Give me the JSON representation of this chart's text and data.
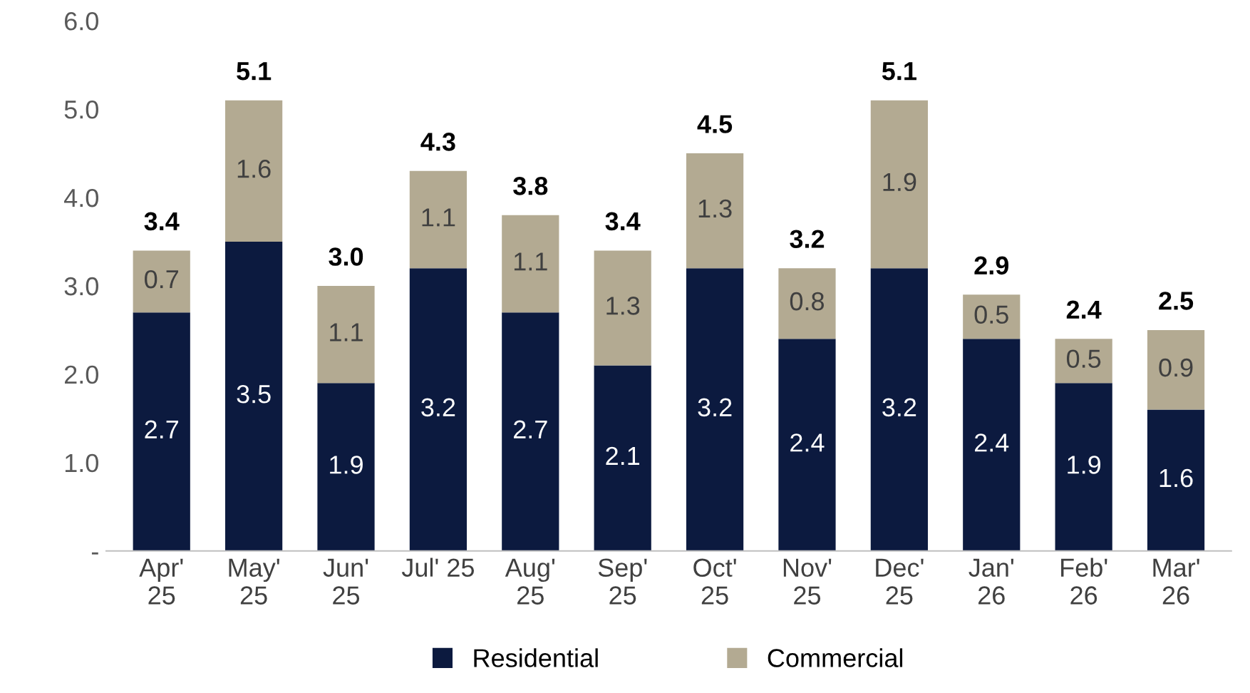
{
  "chart_data": {
    "type": "bar",
    "stacked": true,
    "categories": [
      "Apr'\n25",
      "May'\n25",
      "Jun'\n25",
      "Jul' 25",
      "Aug'\n25",
      "Sep'\n25",
      "Oct'\n25",
      "Nov'\n25",
      "Dec'\n25",
      "Jan'\n26",
      "Feb'\n26",
      "Mar'\n26"
    ],
    "series": [
      {
        "name": "Residential",
        "color": "#0c1a3f",
        "values": [
          2.7,
          3.5,
          1.9,
          3.2,
          2.7,
          2.1,
          3.2,
          2.4,
          3.2,
          2.4,
          1.9,
          1.6
        ]
      },
      {
        "name": "Commercial",
        "color": "#b3aa92",
        "values": [
          0.7,
          1.6,
          1.1,
          1.1,
          1.1,
          1.3,
          1.3,
          0.8,
          1.9,
          0.5,
          0.5,
          0.9
        ]
      }
    ],
    "totals": [
      "3.4",
      "5.1",
      "3.0",
      "4.3",
      "3.8",
      "3.4",
      "4.5",
      "3.2",
      "5.1",
      "2.9",
      "2.4",
      "2.5"
    ],
    "data_labels": true,
    "ylim": [
      0,
      6
    ],
    "yticks": [
      {
        "value": 0,
        "label": "-"
      },
      {
        "value": 1,
        "label": "1.0"
      },
      {
        "value": 2,
        "label": "2.0"
      },
      {
        "value": 3,
        "label": "3.0"
      },
      {
        "value": 4,
        "label": "4.0"
      },
      {
        "value": 5,
        "label": "5.0"
      },
      {
        "value": 6,
        "label": "6.0"
      }
    ],
    "grid": false,
    "legend": "bottom"
  }
}
